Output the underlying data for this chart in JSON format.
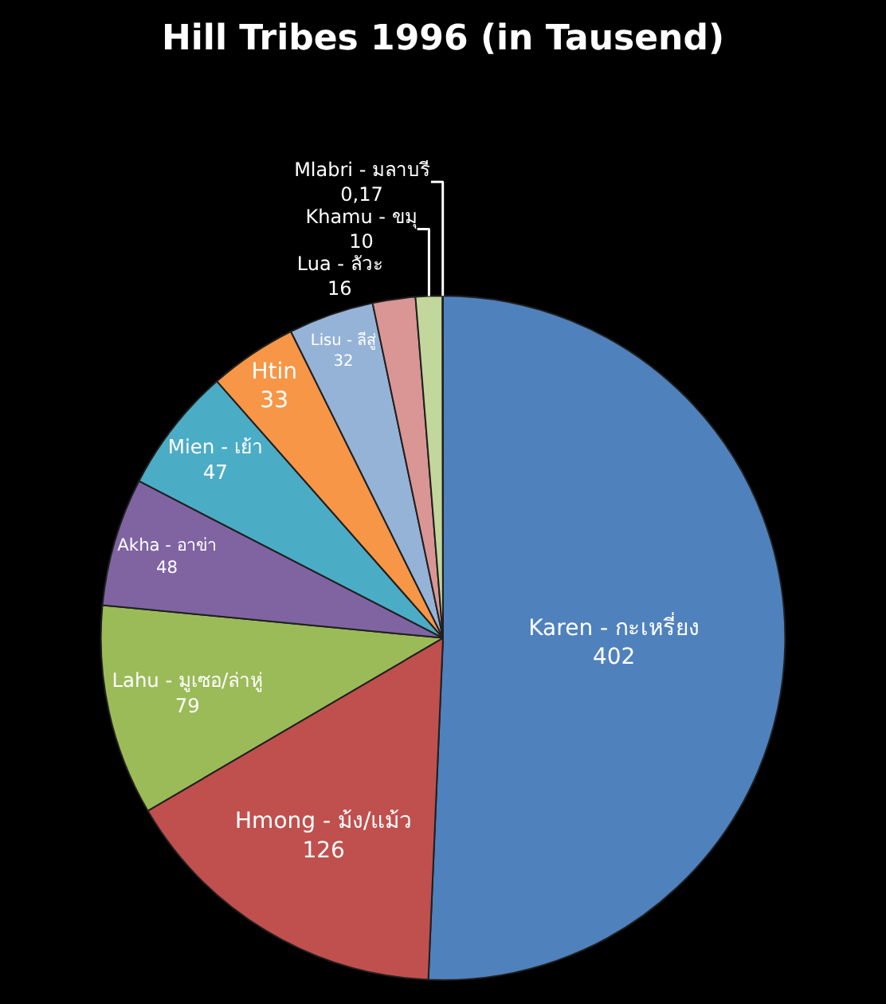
{
  "chart_data": {
    "type": "pie",
    "title": "Hill Tribes 1996 (in Tausend)",
    "categories": [
      "Karen - กะเหรี่ยง",
      "Hmong - ม้ง/แม้ว",
      "Lahu - มูเซอ/ล่าหู่",
      "Akha - อาข่า",
      "Mien - เย้า",
      "Htin",
      "Lisu - ลีสู่",
      "Lua - ลัวะ",
      "Khamu - ขมุ",
      "Mlabri - มลาบรี"
    ],
    "values": [
      402,
      126,
      79,
      48,
      47,
      33,
      32,
      16,
      10,
      0.17
    ],
    "value_labels": [
      "402",
      "126",
      "79",
      "48",
      "47",
      "33",
      "32",
      "16",
      "10",
      "0,17"
    ],
    "colors": [
      "#4f81bd",
      "#c0504d",
      "#9bbb59",
      "#8064a2",
      "#4bacc6",
      "#f79646",
      "#95b3d7",
      "#d99694",
      "#c3d69b",
      "#8db3e2"
    ],
    "legend": false
  }
}
